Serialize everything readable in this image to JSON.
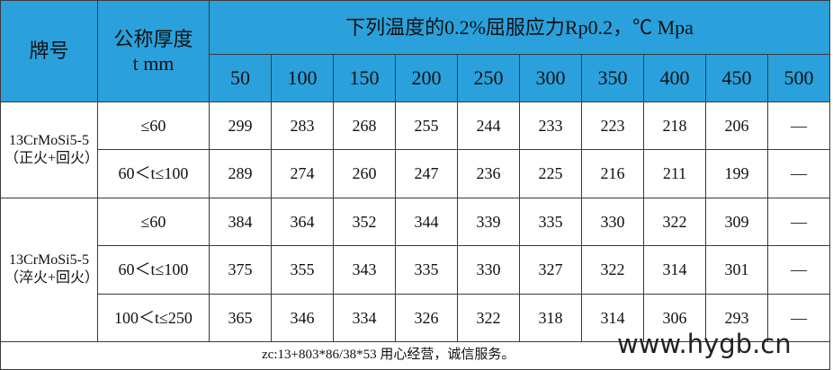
{
  "header": {
    "grade": "牌号",
    "thickness": [
      "公称厚度",
      "t mm"
    ],
    "title": "下列温度的0.2%屈服应力Rp0.2，℃ Mpa",
    "temperatures": [
      "50",
      "100",
      "150",
      "200",
      "250",
      "300",
      "350",
      "400",
      "450",
      "500"
    ]
  },
  "groups": [
    {
      "grade": "13CrMoSi5-5（正火+回火）",
      "rows": [
        {
          "thickness": "≤60",
          "values": [
            299,
            283,
            268,
            255,
            244,
            233,
            223,
            218,
            206,
            "—"
          ]
        },
        {
          "thickness": "60＜t≤100",
          "values": [
            289,
            274,
            260,
            247,
            236,
            225,
            216,
            211,
            199,
            "—"
          ]
        }
      ]
    },
    {
      "grade": "13CrMoSi5-5（淬火+回火）",
      "rows": [
        {
          "thickness": "≤60",
          "values": [
            384,
            364,
            352,
            344,
            339,
            335,
            330,
            322,
            309,
            "—"
          ]
        },
        {
          "thickness": "60＜t≤100",
          "values": [
            375,
            355,
            343,
            335,
            330,
            327,
            322,
            314,
            301,
            "—"
          ]
        },
        {
          "thickness": "100＜t≤250",
          "values": [
            365,
            346,
            334,
            326,
            322,
            318,
            314,
            306,
            293,
            "—"
          ]
        }
      ]
    }
  ],
  "footer": "zc:13+803*86/38*53 用心经营，诚信服务。",
  "watermark": "www.hygb.cn"
}
